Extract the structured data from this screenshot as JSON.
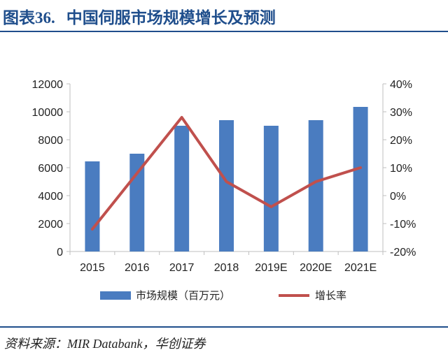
{
  "header": {
    "prefix": "图表",
    "number": "36.",
    "title": "中国伺服市场规模增长及预测"
  },
  "source": {
    "label": "资料来源：",
    "text": "MIR Databank，华创证券"
  },
  "colors": {
    "bar": "#4a7cc0",
    "line": "#c0504d",
    "accent": "#1f4e8c"
  },
  "chart_data": {
    "type": "bar",
    "categories": [
      "2015",
      "2016",
      "2017",
      "2018",
      "2019E",
      "2020E",
      "2021E"
    ],
    "series": [
      {
        "name": "市场规模（百万元）",
        "type": "bar",
        "axis": "left",
        "values": [
          6450,
          7000,
          9000,
          9400,
          9000,
          9400,
          10350
        ]
      },
      {
        "name": "增长率",
        "type": "line",
        "axis": "right",
        "values": [
          -12,
          8,
          28,
          5,
          -4,
          5,
          10
        ]
      }
    ],
    "y_left": {
      "min": 0,
      "max": 12000,
      "ticks": [
        0,
        2000,
        4000,
        6000,
        8000,
        10000,
        12000
      ]
    },
    "y_right": {
      "min": -20,
      "max": 40,
      "ticks": [
        "-20%",
        "-10%",
        "0%",
        "10%",
        "20%",
        "30%",
        "40%"
      ]
    },
    "legend_position": "bottom",
    "grid": false
  }
}
